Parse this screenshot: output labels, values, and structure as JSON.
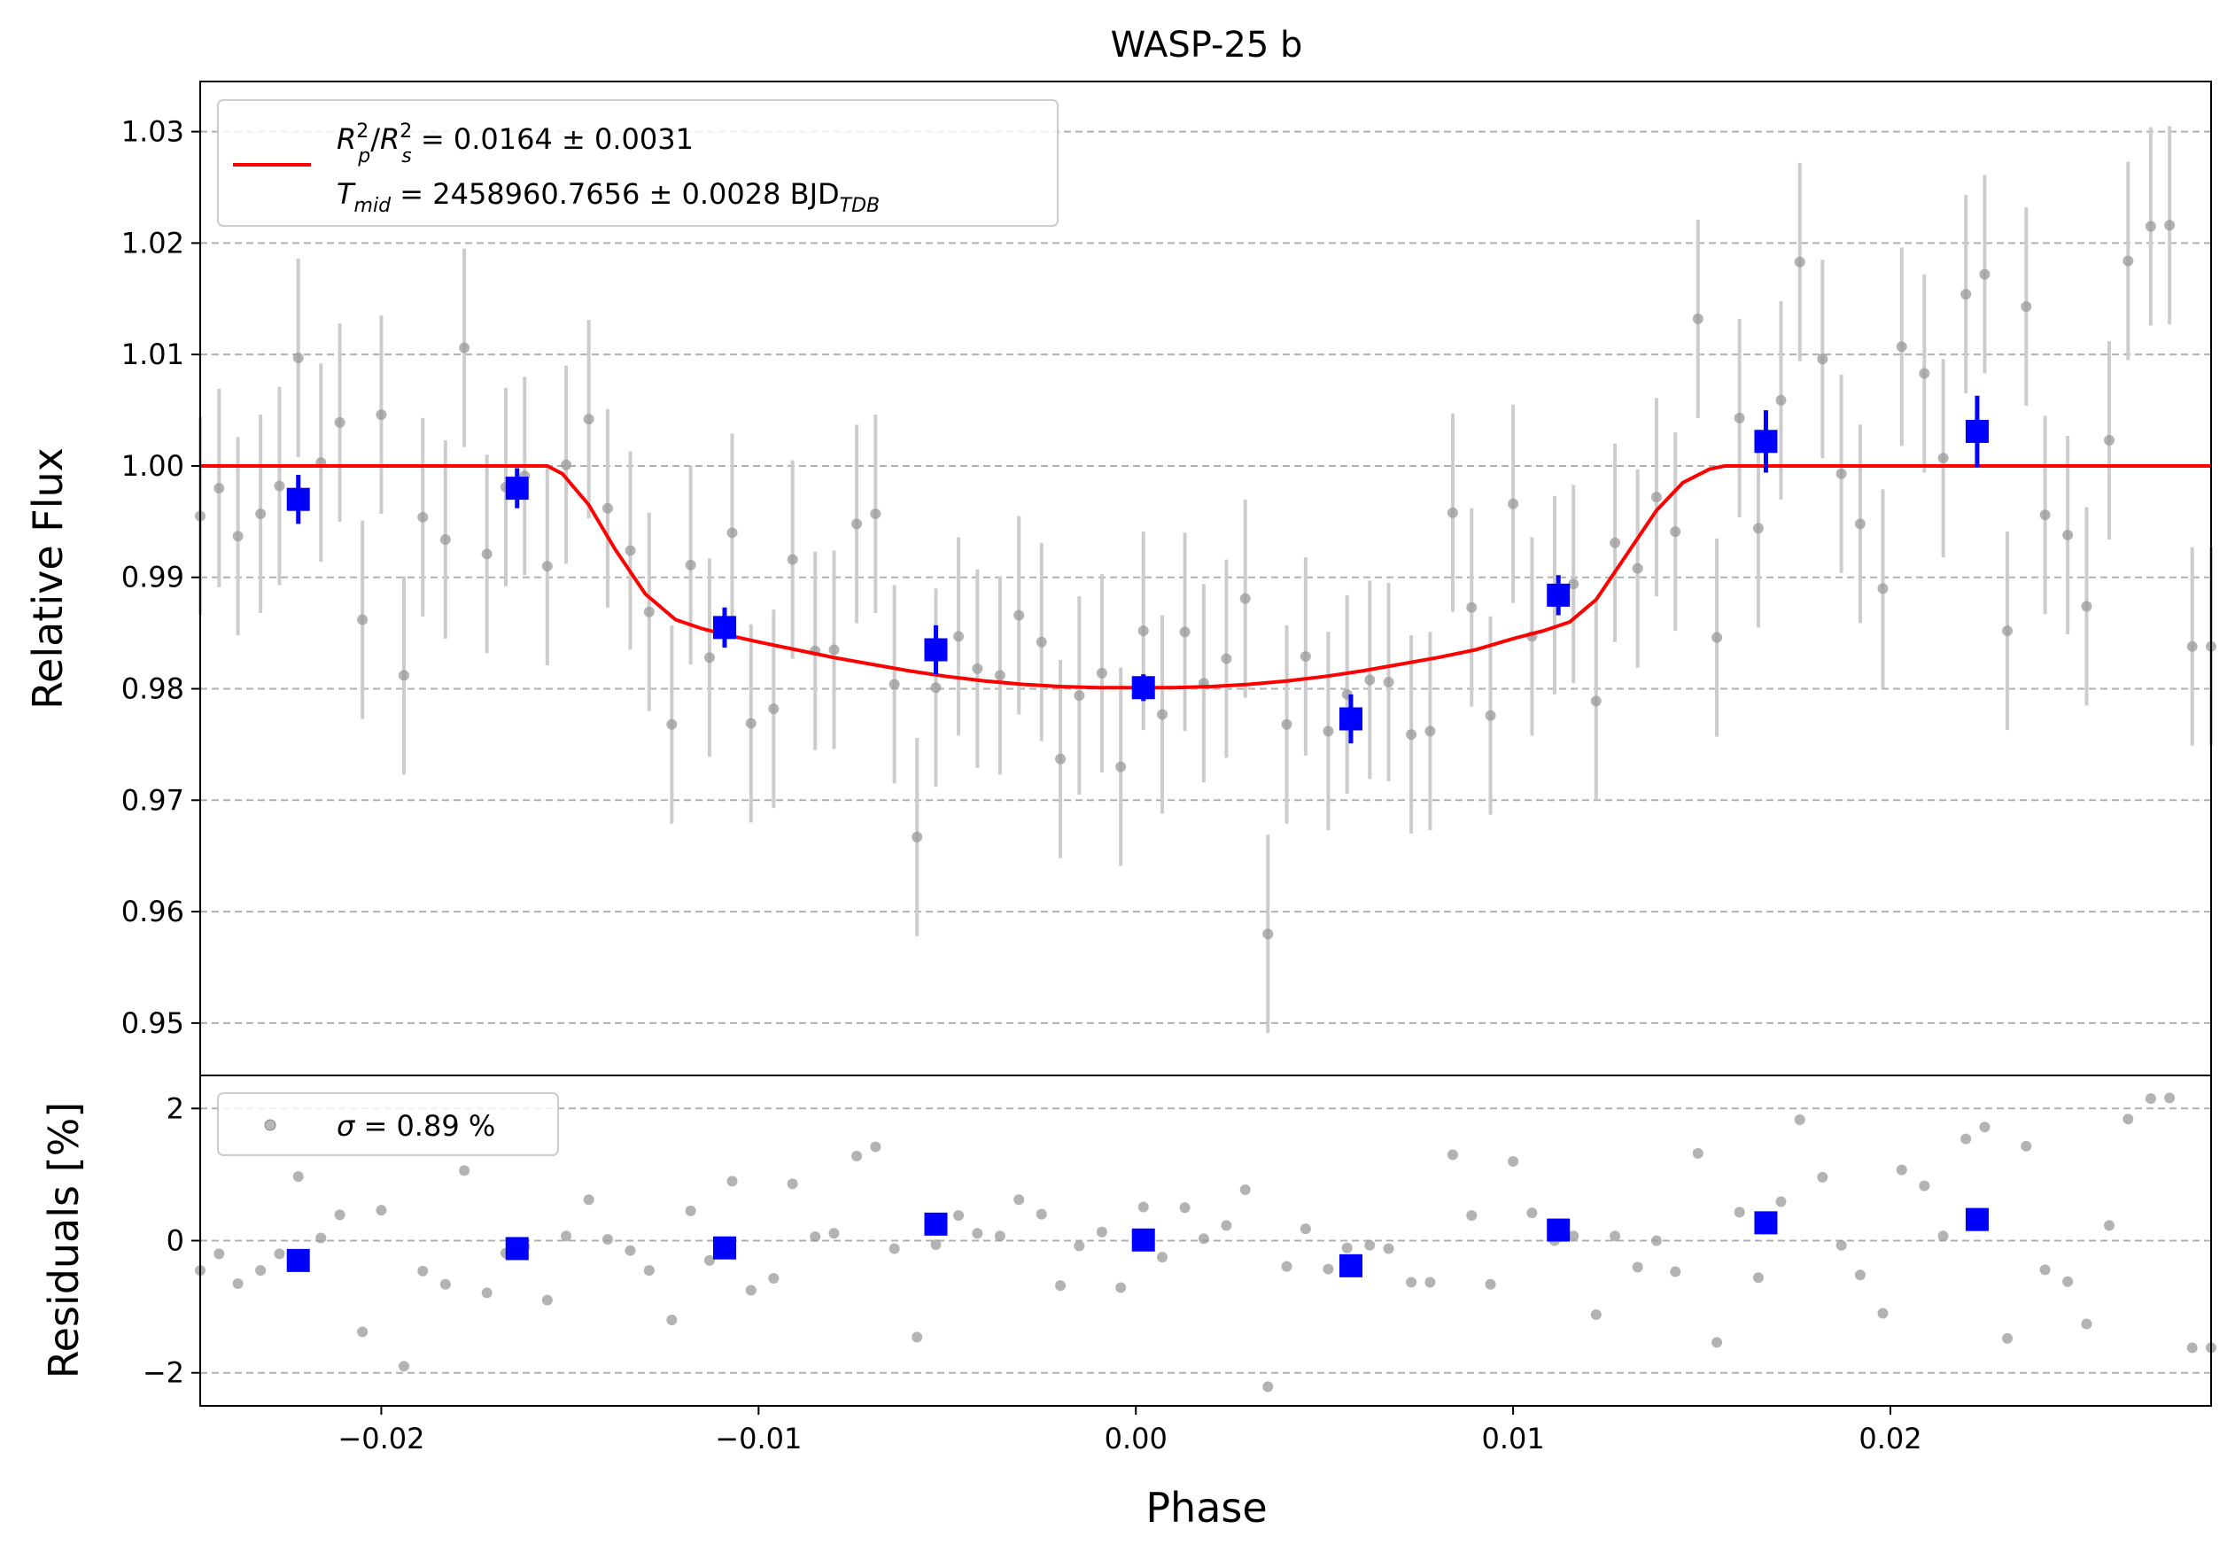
{
  "chart_data": [
    {
      "type": "scatter",
      "panel": "main",
      "title": "WASP-25 b",
      "xlabel": "",
      "ylabel": "Relative Flux",
      "xlim": [
        -0.0248,
        0.0285
      ],
      "ylim": [
        0.9453,
        1.0345
      ],
      "grid": "y-dashed",
      "legend_placement": "top-left",
      "xticks": [
        "−0.02",
        "−0.01",
        "0.00",
        "0.01",
        "0.02"
      ],
      "yticks": [
        "0.95",
        "0.96",
        "0.97",
        "0.98",
        "0.99",
        "1.00",
        "1.01",
        "1.02",
        "1.03"
      ],
      "legend": {
        "line1": {
          "lhs_base1": "R",
          "lhs_sub1": "p",
          "lhs_sup1": "2",
          "slash": "/",
          "lhs_base2": "R",
          "lhs_sub2": "s",
          "lhs_sup2": "2",
          "rhs": " = 0.0164 ± 0.0031"
        },
        "line2": {
          "base": "T",
          "sub": "mid",
          "rhs": " = 2458960.7656 ± 0.0028 BJD",
          "unit_sub": "TDB"
        }
      },
      "model": {
        "name": "transit model",
        "color": "#ff0000",
        "x": [
          -0.0248,
          -0.0156,
          -0.0152,
          -0.0145,
          -0.0138,
          -0.013,
          -0.0122,
          -0.0115,
          -0.0108,
          -0.01,
          -0.009,
          -0.008,
          -0.007,
          -0.006,
          -0.005,
          -0.004,
          -0.003,
          -0.002,
          -0.001,
          0.0,
          0.001,
          0.002,
          0.003,
          0.004,
          0.005,
          0.006,
          0.007,
          0.008,
          0.009,
          0.01,
          0.0108,
          0.0115,
          0.0122,
          0.013,
          0.0138,
          0.0145,
          0.0152,
          0.0156,
          0.0285
        ],
        "y": [
          1.0,
          1.0,
          0.9993,
          0.9965,
          0.9925,
          0.9885,
          0.9862,
          0.9854,
          0.9848,
          0.9842,
          0.9835,
          0.9828,
          0.9822,
          0.9816,
          0.9811,
          0.9807,
          0.9804,
          0.9802,
          0.9801,
          0.9801,
          0.9801,
          0.9802,
          0.9804,
          0.9807,
          0.9811,
          0.9816,
          0.9822,
          0.9828,
          0.9835,
          0.9845,
          0.9852,
          0.986,
          0.988,
          0.992,
          0.996,
          0.9985,
          0.9997,
          1.0,
          1.0
        ]
      },
      "raw": {
        "name": "data",
        "color": "#999999",
        "errorbar_color": "#cccccc",
        "err": 0.0089,
        "x": [
          -0.0248,
          -0.0243,
          -0.0238,
          -0.0232,
          -0.0227,
          -0.0222,
          -0.0216,
          -0.0211,
          -0.0205,
          -0.02,
          -0.0194,
          -0.0189,
          -0.0183,
          -0.0178,
          -0.0172,
          -0.0167,
          -0.0162,
          -0.0156,
          -0.0151,
          -0.0145,
          -0.014,
          -0.0134,
          -0.0129,
          -0.0123,
          -0.0118,
          -0.0113,
          -0.0107,
          -0.0102,
          -0.0096,
          -0.0091,
          -0.0085,
          -0.008,
          -0.0074,
          -0.0069,
          -0.0064,
          -0.0058,
          -0.0053,
          -0.0047,
          -0.0042,
          -0.0036,
          -0.0031,
          -0.0025,
          -0.002,
          -0.0015,
          -0.0009,
          -0.0004,
          0.0002,
          0.0007,
          0.0013,
          0.0018,
          0.0024,
          0.0029,
          0.0035,
          0.004,
          0.0045,
          0.0051,
          0.0056,
          0.0062,
          0.0067,
          0.0073,
          0.0078,
          0.0084,
          0.0089,
          0.0094,
          0.01,
          0.0105,
          0.0111,
          0.0116,
          0.0122,
          0.0127,
          0.0133,
          0.0138,
          0.0143,
          0.0149,
          0.0154,
          0.016,
          0.0165,
          0.0171,
          0.0176,
          0.0182,
          0.0187,
          0.0192,
          0.0198,
          0.0203,
          0.0209,
          0.0214,
          0.022,
          0.0225,
          0.0231,
          0.0236,
          0.0241,
          0.0247,
          0.0252,
          0.0258,
          0.0263,
          0.0269,
          0.0274,
          0.028,
          0.0285
        ],
        "y": [
          0.9955,
          0.998,
          0.9937,
          0.9957,
          0.9982,
          1.0097,
          1.0003,
          1.0039,
          0.9862,
          1.0046,
          0.9812,
          0.9954,
          0.9934,
          1.0106,
          0.9921,
          0.9981,
          0.9991,
          0.991,
          1.0001,
          1.0042,
          0.9962,
          0.9924,
          0.9869,
          0.9768,
          0.9911,
          0.9828,
          0.994,
          0.9769,
          0.9782,
          0.9916,
          0.9834,
          0.9835,
          0.9948,
          0.9957,
          0.9804,
          0.9667,
          0.9801,
          0.9847,
          0.9818,
          0.9812,
          0.9866,
          0.9842,
          0.9737,
          0.9794,
          0.9814,
          0.973,
          0.9852,
          0.9777,
          0.9851,
          0.9805,
          0.9827,
          0.9881,
          0.958,
          0.9768,
          0.9829,
          0.9762,
          0.9795,
          0.9808,
          0.9806,
          0.9759,
          0.9762,
          0.9958,
          0.9873,
          0.9776,
          0.9966,
          0.9847,
          0.9884,
          0.9894,
          0.9789,
          0.9931,
          0.9908,
          0.9972,
          0.9941,
          1.0132,
          0.9846,
          1.0043,
          0.9944,
          1.0059,
          1.0183,
          1.0096,
          0.9993,
          0.9948,
          0.989,
          1.0107,
          1.0083,
          1.0007,
          1.0154,
          1.0172,
          0.9852,
          1.0143,
          0.9956,
          0.9938,
          0.9874,
          1.0023,
          1.0184,
          1.0215,
          1.0216,
          0.9838,
          0.9838
        ]
      },
      "binned": {
        "name": "binned",
        "color": "#0000ff",
        "x": [
          -0.0222,
          -0.0164,
          -0.0109,
          -0.0053,
          0.0002,
          0.0057,
          0.0112,
          0.0167,
          0.0223
        ],
        "y": [
          0.997,
          0.998,
          0.9855,
          0.9835,
          0.9801,
          0.9773,
          0.9884,
          1.0022,
          1.0031
        ],
        "err": [
          0.0022,
          0.0018,
          0.0018,
          0.0022,
          0.0012,
          0.0022,
          0.0018,
          0.0028,
          0.0032
        ]
      }
    },
    {
      "type": "scatter",
      "panel": "residuals",
      "title": "",
      "xlabel": "Phase",
      "ylabel": "Residuals [%]",
      "xlim": [
        -0.0248,
        0.0285
      ],
      "ylim": [
        -2.5,
        2.5
      ],
      "grid": "y-dashed",
      "legend_placement": "top-left",
      "xticks": [
        "−0.02",
        "−0.01",
        "0.00",
        "0.01",
        "0.02"
      ],
      "yticks": [
        "−2",
        "0",
        "2"
      ],
      "legend": {
        "symbol": "σ",
        "rhs": " = 0.89 %"
      },
      "raw": {
        "color": "#999999",
        "x": [
          -0.0248,
          -0.0243,
          -0.0238,
          -0.0232,
          -0.0227,
          -0.0222,
          -0.0216,
          -0.0211,
          -0.0205,
          -0.02,
          -0.0194,
          -0.0189,
          -0.0183,
          -0.0178,
          -0.0172,
          -0.0167,
          -0.0162,
          -0.0156,
          -0.0151,
          -0.0145,
          -0.014,
          -0.0134,
          -0.0129,
          -0.0123,
          -0.0118,
          -0.0113,
          -0.0107,
          -0.0102,
          -0.0096,
          -0.0091,
          -0.0085,
          -0.008,
          -0.0074,
          -0.0069,
          -0.0064,
          -0.0058,
          -0.0053,
          -0.0047,
          -0.0042,
          -0.0036,
          -0.0031,
          -0.0025,
          -0.002,
          -0.0015,
          -0.0009,
          -0.0004,
          0.0002,
          0.0007,
          0.0013,
          0.0018,
          0.0024,
          0.0029,
          0.0035,
          0.004,
          0.0045,
          0.0051,
          0.0056,
          0.0062,
          0.0067,
          0.0073,
          0.0078,
          0.0084,
          0.0089,
          0.0094,
          0.01,
          0.0105,
          0.0111,
          0.0116,
          0.0122,
          0.0127,
          0.0133,
          0.0138,
          0.0143,
          0.0149,
          0.0154,
          0.016,
          0.0165,
          0.0171,
          0.0176,
          0.0182,
          0.0187,
          0.0192,
          0.0198,
          0.0203,
          0.0209,
          0.0214,
          0.022,
          0.0225,
          0.0231,
          0.0236,
          0.0241,
          0.0247,
          0.0252,
          0.0258,
          0.0263,
          0.0269,
          0.0274,
          0.028,
          0.0285
        ],
        "y": [
          -0.45,
          -0.2,
          -0.65,
          -0.45,
          -0.2,
          0.97,
          0.04,
          0.39,
          -1.38,
          0.46,
          -1.9,
          -0.46,
          -0.66,
          1.06,
          -0.79,
          -0.19,
          -0.09,
          -0.9,
          0.07,
          0.62,
          0.02,
          -0.15,
          -0.45,
          -1.2,
          0.45,
          -0.3,
          0.9,
          -0.75,
          -0.57,
          0.86,
          0.06,
          0.11,
          1.28,
          1.42,
          -0.12,
          -1.46,
          -0.06,
          0.38,
          0.11,
          0.07,
          0.62,
          0.4,
          -0.68,
          -0.08,
          0.13,
          -0.71,
          0.51,
          -0.25,
          0.5,
          0.03,
          0.23,
          0.77,
          -2.21,
          -0.39,
          0.18,
          -0.43,
          -0.11,
          -0.07,
          -0.12,
          -0.63,
          -0.63,
          1.3,
          0.38,
          -0.66,
          1.2,
          0.42,
          0.0,
          0.07,
          -1.12,
          0.07,
          -0.4,
          0.0,
          -0.47,
          1.32,
          -1.54,
          0.43,
          -0.56,
          0.59,
          1.83,
          0.96,
          -0.07,
          -0.52,
          -1.1,
          1.07,
          0.83,
          0.07,
          1.54,
          1.72,
          -1.48,
          1.43,
          -0.44,
          -0.62,
          -1.26,
          0.23,
          1.84,
          2.15,
          2.16,
          -1.62,
          -1.62
        ]
      },
      "binned": {
        "color": "#0000ff",
        "x": [
          -0.0222,
          -0.0164,
          -0.0109,
          -0.0053,
          0.0002,
          0.0057,
          0.0112,
          0.0167,
          0.0223
        ],
        "y": [
          -0.3,
          -0.12,
          -0.11,
          0.25,
          0.01,
          -0.38,
          0.16,
          0.27,
          0.32
        ]
      }
    }
  ]
}
